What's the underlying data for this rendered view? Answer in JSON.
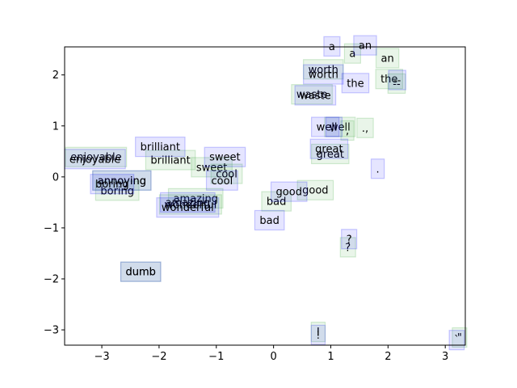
{
  "chart_data": {
    "type": "scatter",
    "title": "",
    "xlabel": "",
    "ylabel": "",
    "xlim": [
      -3.65,
      3.35
    ],
    "ylim": [
      -3.3,
      2.55
    ],
    "xticks": [
      -3,
      -2,
      -1,
      0,
      1,
      2,
      3
    ],
    "yticks": [
      -3,
      -2,
      -1,
      0,
      1,
      2
    ],
    "grid": false,
    "legend": "none",
    "series": [
      {
        "color": "#2ca02c",
        "points": [
          {
            "label": "a",
            "x": 1.38,
            "y": 2.42
          },
          {
            "label": "an",
            "x": 1.99,
            "y": 2.33
          },
          {
            "label": "worth",
            "x": 0.87,
            "y": 2.11
          },
          {
            "label": "the",
            "x": 2.02,
            "y": 1.92
          },
          {
            "label": "--",
            "x": 2.15,
            "y": 1.83
          },
          {
            "label": "waste",
            "x": 0.67,
            "y": 1.62
          },
          {
            "label": "well",
            "x": 1.16,
            "y": 0.98
          },
          {
            "label": ",",
            "x": 1.29,
            "y": 0.91
          },
          {
            "label": ".,",
            "x": 1.6,
            "y": 0.96
          },
          {
            "label": "great",
            "x": 0.99,
            "y": 0.45
          },
          {
            "label": "enjoyable",
            "x": -3.1,
            "y": 0.39
          },
          {
            "label": "brilliant",
            "x": -1.8,
            "y": 0.33
          },
          {
            "label": "sweet",
            "x": -1.08,
            "y": 0.19
          },
          {
            "label": "cool",
            "x": -0.82,
            "y": 0.06
          },
          {
            "label": "annoying",
            "x": -2.65,
            "y": -0.07
          },
          {
            "label": "boring",
            "x": -2.73,
            "y": -0.27
          },
          {
            "label": "good",
            "x": 0.73,
            "y": -0.26
          },
          {
            "label": "amazing",
            "x": -1.36,
            "y": -0.42
          },
          {
            "label": "wonderful",
            "x": -1.45,
            "y": -0.54
          },
          {
            "label": "bad",
            "x": 0.05,
            "y": -0.48
          },
          {
            "label": "?",
            "x": 1.3,
            "y": -1.38
          },
          {
            "label": "dumb",
            "x": -2.32,
            "y": -1.86
          },
          {
            "label": "!",
            "x": 0.78,
            "y": -3.04
          },
          {
            "label": "\"",
            "x": 3.25,
            "y": -3.15
          }
        ]
      },
      {
        "color": "#0000ff",
        "points": [
          {
            "label": "a",
            "x": 1.02,
            "y": 2.56
          },
          {
            "label": "an",
            "x": 1.6,
            "y": 2.58
          },
          {
            "label": "worth",
            "x": 0.87,
            "y": 2.01
          },
          {
            "label": "the",
            "x": 1.43,
            "y": 1.84
          },
          {
            "label": "--",
            "x": 2.16,
            "y": 1.9
          },
          {
            "label": "waste",
            "x": 0.73,
            "y": 1.6
          },
          {
            "label": "well",
            "x": 0.93,
            "y": 0.98
          },
          {
            "label": ",",
            "x": 1.03,
            "y": 0.98
          },
          {
            "label": ".",
            "x": 1.82,
            "y": 0.16
          },
          {
            "label": "great",
            "x": 0.97,
            "y": 0.55
          },
          {
            "label": "enjoyable",
            "x": -3.12,
            "y": 0.35
          },
          {
            "label": "brilliant",
            "x": -1.98,
            "y": 0.59
          },
          {
            "label": "sweet",
            "x": -0.85,
            "y": 0.39
          },
          {
            "label": "cool",
            "x": -0.9,
            "y": -0.07
          },
          {
            "label": "annoying",
            "x": -2.65,
            "y": -0.07
          },
          {
            "label": "boring",
            "x": -2.82,
            "y": -0.14
          },
          {
            "label": "good",
            "x": 0.27,
            "y": -0.29
          },
          {
            "label": "amazing",
            "x": -1.5,
            "y": -0.5
          },
          {
            "label": "wonderful",
            "x": -1.5,
            "y": -0.6
          },
          {
            "label": "bad",
            "x": -0.07,
            "y": -0.85
          },
          {
            "label": "?",
            "x": 1.32,
            "y": -1.22
          },
          {
            "label": "dumb",
            "x": -2.32,
            "y": -1.86
          },
          {
            "label": "!",
            "x": 0.78,
            "y": -3.1
          },
          {
            "label": "`",
            "x": 3.2,
            "y": -3.2
          }
        ]
      }
    ]
  }
}
